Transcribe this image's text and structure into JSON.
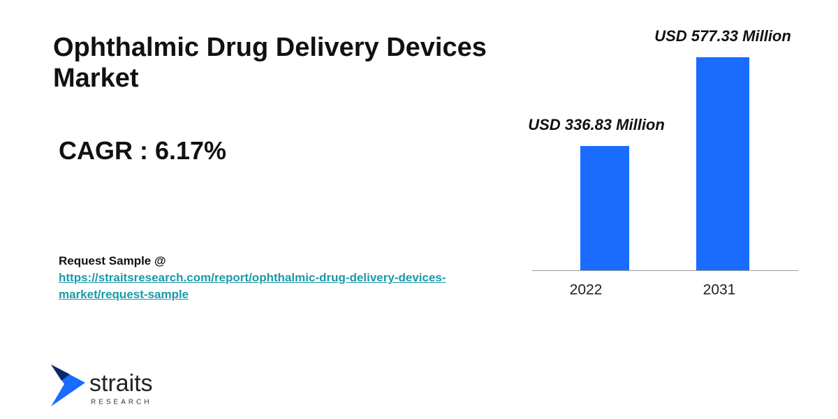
{
  "chart_data": {
    "type": "bar",
    "title": "Ophthalmic Drug Delivery Devices Market",
    "subtitle": "CAGR : 6.17%",
    "categories": [
      "2022",
      "2031"
    ],
    "values": [
      336.83,
      577.33
    ],
    "value_labels": [
      "USD 336.83 Million",
      "USD 577.33 Million"
    ],
    "color": "#1a6cff"
  },
  "request": {
    "label": "Request Sample @",
    "url": "https://straitsresearch.com/report/ophthalmic-drug-delivery-devices-market/request-sample"
  },
  "logo": {
    "name": "straits",
    "tagline": "RESEARCH"
  }
}
